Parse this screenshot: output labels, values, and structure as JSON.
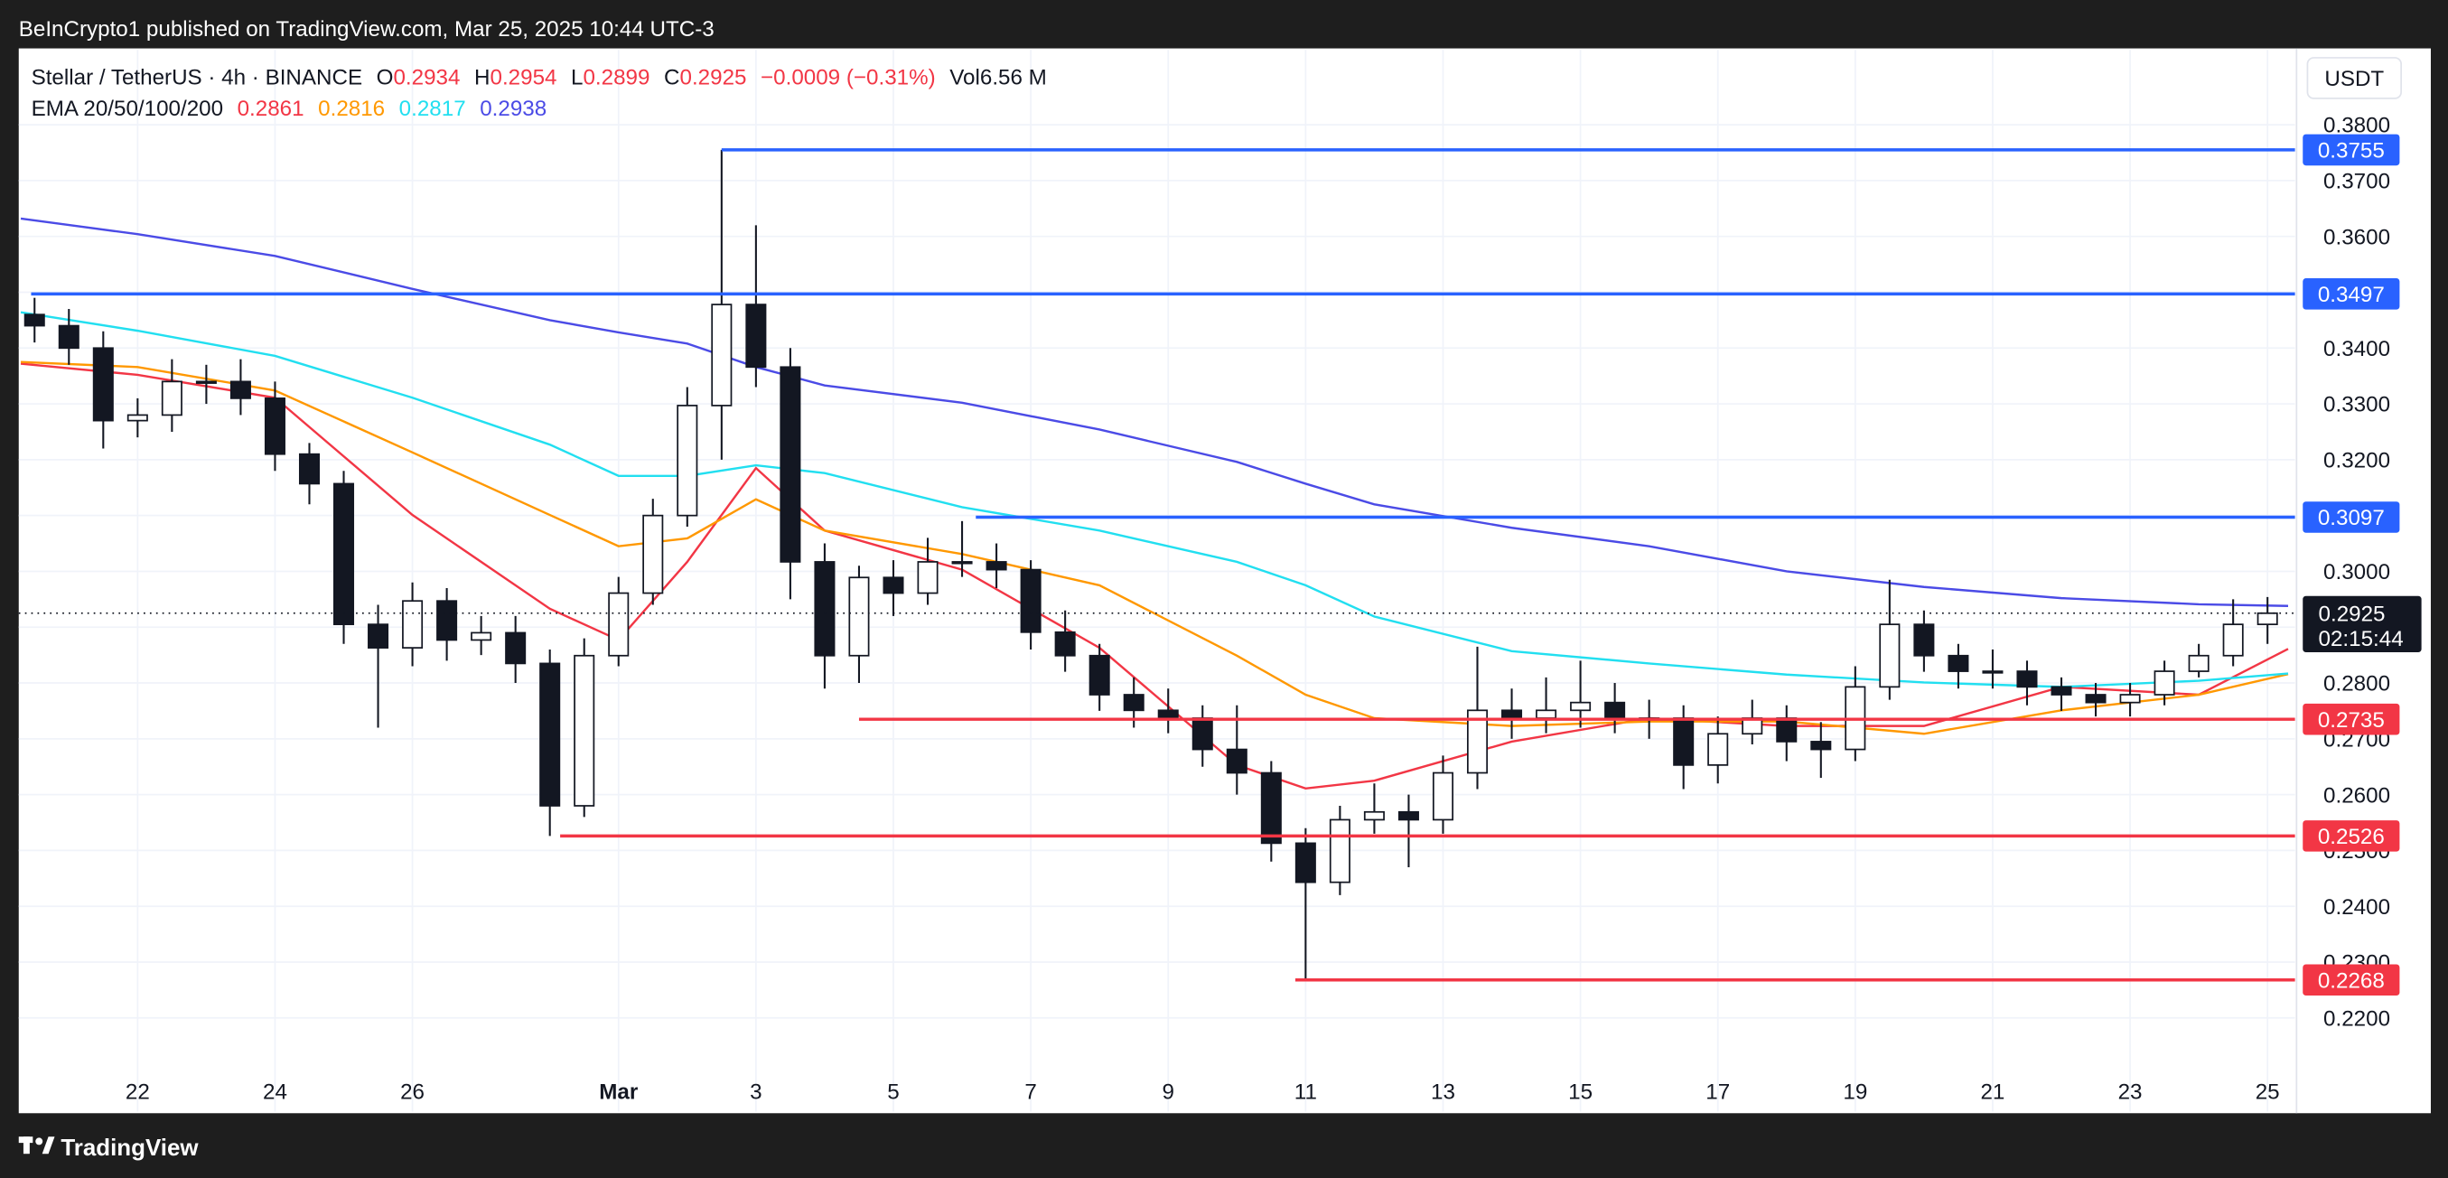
{
  "header": {
    "publisher": "BeInCrypto1 published on TradingView.com, Mar 25, 2025 10:44 UTC-3"
  },
  "footer": {
    "brand": "TradingView"
  },
  "chart_data": {
    "type": "candlestick",
    "title": "Stellar / TetherUS · 4h · BINANCE",
    "fields": [
      {
        "label": "O",
        "value": 0.2934
      },
      {
        "label": "H",
        "value": 0.2954
      },
      {
        "label": "L",
        "value": 0.2899
      },
      {
        "label": "C",
        "value": 0.2925
      }
    ],
    "change": "−0.0009 (−0.31%)",
    "volume_label": "Vol",
    "volume": "6.56 M",
    "ema_label": "EMA 20/50/100/200",
    "currency": "USDT",
    "last_price": 0.2925,
    "countdown": "02:15:44",
    "xlim": [
      0.27,
      33.4
    ],
    "ylim": [
      0.2116,
      0.3934
    ],
    "grid": true,
    "xticks": [
      {
        "value": 2,
        "label": "22"
      },
      {
        "value": 4,
        "label": "24"
      },
      {
        "value": 6,
        "label": "26"
      },
      {
        "value": 9,
        "label": "Mar"
      },
      {
        "value": 11,
        "label": "3"
      },
      {
        "value": 13,
        "label": "5"
      },
      {
        "value": 15,
        "label": "7"
      },
      {
        "value": 17,
        "label": "9"
      },
      {
        "value": 19,
        "label": "11"
      },
      {
        "value": 21,
        "label": "13"
      },
      {
        "value": 23,
        "label": "15"
      },
      {
        "value": 25,
        "label": "17"
      },
      {
        "value": 27,
        "label": "19"
      },
      {
        "value": 29,
        "label": "21"
      },
      {
        "value": 31,
        "label": "23"
      },
      {
        "value": 33,
        "label": "25"
      }
    ],
    "yticks": [
      {
        "value": 0.22,
        "label": "0.2200"
      },
      {
        "value": 0.23,
        "label": "0.2300"
      },
      {
        "value": 0.24,
        "label": "0.2400"
      },
      {
        "value": 0.25,
        "label": "0.2500"
      },
      {
        "value": 0.26,
        "label": "0.2600"
      },
      {
        "value": 0.27,
        "label": "0.2700"
      },
      {
        "value": 0.28,
        "label": "0.2800"
      },
      {
        "value": 0.29,
        "label": "0.2900"
      },
      {
        "value": 0.3,
        "label": "0.3000"
      },
      {
        "value": 0.31,
        "label": "0.3100"
      },
      {
        "value": 0.32,
        "label": "0.3200"
      },
      {
        "value": 0.33,
        "label": "0.3300"
      },
      {
        "value": 0.34,
        "label": "0.3400"
      },
      {
        "value": 0.35,
        "label": "0.3500"
      },
      {
        "value": 0.36,
        "label": "0.3600"
      },
      {
        "value": 0.37,
        "label": "0.3700"
      },
      {
        "value": 0.38,
        "label": "0.3800"
      }
    ],
    "x": [
      0.5,
      1,
      1.5,
      2,
      2.5,
      3,
      3.5,
      4,
      4.5,
      5,
      5.5,
      6,
      6.5,
      7,
      7.5,
      8,
      8.5,
      9,
      9.5,
      10,
      10.5,
      11,
      11.5,
      12,
      12.5,
      13,
      13.5,
      14,
      14.5,
      15,
      15.5,
      16,
      16.5,
      17,
      17.5,
      18,
      18.5,
      19,
      19.5,
      20,
      20.5,
      21,
      21.5,
      22,
      22.5,
      23,
      23.5,
      24,
      24.5,
      25,
      25.5,
      26,
      26.5,
      27,
      27.5,
      28,
      28.5,
      29,
      29.5,
      30,
      30.5,
      31,
      31.5,
      32,
      32.5,
      33
    ],
    "open": [
      0.346,
      0.344,
      0.34,
      0.327,
      0.328,
      0.334,
      0.334,
      0.331,
      0.321,
      0.3157,
      0.2905,
      0.2863,
      0.2947,
      0.2877,
      0.289,
      0.2835,
      0.258,
      0.2849,
      0.2961,
      0.31,
      0.3297,
      0.3478,
      0.3366,
      0.3017,
      0.2849,
      0.2989,
      0.2961,
      0.3017,
      0.3017,
      0.3003,
      0.2891,
      0.2849,
      0.2779,
      0.2751,
      0.2737,
      0.2681,
      0.2639,
      0.2513,
      0.2443,
      0.2555,
      0.2569,
      0.2555,
      0.2639,
      0.2751,
      0.2737,
      0.2751,
      0.2765,
      0.2737,
      0.2737,
      0.2653,
      0.2709,
      0.2737,
      0.2695,
      0.2681,
      0.2793,
      0.2905,
      0.2849,
      0.2821,
      0.2821,
      0.2793,
      0.2779,
      0.2765,
      0.2779,
      0.2821,
      0.2849,
      0.2905
    ],
    "high": [
      0.349,
      0.347,
      0.343,
      0.331,
      0.338,
      0.337,
      0.338,
      0.334,
      0.323,
      0.318,
      0.294,
      0.298,
      0.297,
      0.292,
      0.292,
      0.286,
      0.288,
      0.299,
      0.313,
      0.333,
      0.3755,
      0.362,
      0.34,
      0.305,
      0.301,
      0.302,
      0.306,
      0.309,
      0.305,
      0.302,
      0.293,
      0.287,
      0.281,
      0.279,
      0.276,
      0.276,
      0.266,
      0.254,
      0.258,
      0.262,
      0.26,
      0.267,
      0.2865,
      0.279,
      0.281,
      0.284,
      0.28,
      0.277,
      0.276,
      0.274,
      0.277,
      0.276,
      0.273,
      0.283,
      0.2985,
      0.293,
      0.287,
      0.286,
      0.284,
      0.281,
      0.28,
      0.28,
      0.284,
      0.287,
      0.295,
      0.2954
    ],
    "low": [
      0.341,
      0.337,
      0.322,
      0.324,
      0.325,
      0.33,
      0.328,
      0.318,
      0.312,
      0.287,
      0.272,
      0.283,
      0.284,
      0.285,
      0.28,
      0.2526,
      0.256,
      0.283,
      0.294,
      0.308,
      0.32,
      0.333,
      0.295,
      0.279,
      0.28,
      0.292,
      0.294,
      0.299,
      0.297,
      0.286,
      0.282,
      0.275,
      0.272,
      0.271,
      0.265,
      0.26,
      0.248,
      0.2268,
      0.242,
      0.253,
      0.247,
      0.253,
      0.261,
      0.27,
      0.271,
      0.272,
      0.271,
      0.27,
      0.261,
      0.262,
      0.269,
      0.266,
      0.263,
      0.266,
      0.277,
      0.282,
      0.279,
      0.279,
      0.276,
      0.275,
      0.274,
      0.274,
      0.276,
      0.281,
      0.283,
      0.287
    ],
    "close": [
      0.344,
      0.34,
      0.327,
      0.328,
      0.334,
      0.334,
      0.331,
      0.321,
      0.3157,
      0.2905,
      0.2863,
      0.2947,
      0.2877,
      0.289,
      0.2835,
      0.258,
      0.2849,
      0.2961,
      0.31,
      0.3297,
      0.3478,
      0.3366,
      0.3017,
      0.2849,
      0.2989,
      0.2961,
      0.3017,
      0.3017,
      0.3003,
      0.2891,
      0.2849,
      0.2779,
      0.2751,
      0.2737,
      0.2681,
      0.2639,
      0.2513,
      0.2443,
      0.2555,
      0.2569,
      0.2555,
      0.2639,
      0.2751,
      0.2737,
      0.2751,
      0.2765,
      0.2737,
      0.2737,
      0.2653,
      0.2709,
      0.2737,
      0.2695,
      0.2681,
      0.2793,
      0.2905,
      0.2849,
      0.2821,
      0.2821,
      0.2793,
      0.2779,
      0.2765,
      0.2779,
      0.2821,
      0.2849,
      0.2905,
      0.2925
    ],
    "series": [
      {
        "color": "#f23645",
        "legend_value": 0.2861,
        "x": [
          0.3,
          2,
          4,
          6,
          8,
          9,
          10,
          11,
          12,
          14,
          16,
          18,
          19,
          20,
          22,
          24,
          26,
          28,
          30,
          32,
          33.3
        ],
        "values": [
          0.3372,
          0.3352,
          0.3311,
          0.3101,
          0.2933,
          0.2877,
          0.3017,
          0.3185,
          0.3073,
          0.3003,
          0.2863,
          0.2653,
          0.2611,
          0.2625,
          0.2695,
          0.2737,
          0.2723,
          0.2723,
          0.2793,
          0.2779,
          0.2861
        ]
      },
      {
        "color": "#ff9800",
        "legend_value": 0.2816,
        "x": [
          0.3,
          2,
          4,
          6,
          8,
          9,
          10,
          11,
          12,
          14,
          16,
          18,
          19,
          20,
          22,
          24,
          26,
          28,
          30,
          32,
          33.3
        ],
        "values": [
          0.3375,
          0.3366,
          0.3324,
          0.3213,
          0.3101,
          0.3045,
          0.3059,
          0.3129,
          0.3073,
          0.3031,
          0.2975,
          0.2849,
          0.2779,
          0.2737,
          0.2723,
          0.2731,
          0.2731,
          0.2709,
          0.2751,
          0.2779,
          0.2816
        ]
      },
      {
        "color": "#22dff0",
        "legend_value": 0.2817,
        "x": [
          0.3,
          2,
          4,
          6,
          8,
          9,
          10,
          11,
          12,
          14,
          16,
          18,
          19,
          20,
          22,
          24,
          26,
          28,
          30,
          32,
          33.3
        ],
        "values": [
          0.3464,
          0.3431,
          0.3386,
          0.3311,
          0.3227,
          0.3171,
          0.3171,
          0.319,
          0.3176,
          0.3115,
          0.3073,
          0.3017,
          0.2975,
          0.2919,
          0.2857,
          0.2835,
          0.2815,
          0.2801,
          0.2793,
          0.2804,
          0.2817
        ]
      },
      {
        "color": "#4b4be6",
        "legend_value": 0.2938,
        "x": [
          0.3,
          2,
          4,
          6,
          8,
          9,
          10,
          11,
          12,
          14,
          16,
          18,
          19,
          20,
          22,
          24,
          26,
          28,
          30,
          32,
          33.3
        ],
        "values": [
          0.3632,
          0.3604,
          0.3565,
          0.3506,
          0.345,
          0.3428,
          0.3408,
          0.3366,
          0.3333,
          0.3302,
          0.3254,
          0.3196,
          0.3157,
          0.312,
          0.3078,
          0.3045,
          0.3,
          0.2972,
          0.2952,
          0.2941,
          0.2938
        ]
      }
    ],
    "levels": [
      {
        "value": 0.3755,
        "start": 10.5,
        "color": "#2962ff"
      },
      {
        "value": 0.3497,
        "start": 0.45,
        "color": "#2962ff"
      },
      {
        "value": 0.3097,
        "start": 14.2,
        "color": "#2962ff"
      },
      {
        "value": 0.2735,
        "start": 12.5,
        "color": "#f23645"
      },
      {
        "value": 0.2526,
        "start": 8.15,
        "color": "#f23645"
      },
      {
        "value": 0.2268,
        "start": 18.85,
        "color": "#f23645"
      }
    ]
  }
}
